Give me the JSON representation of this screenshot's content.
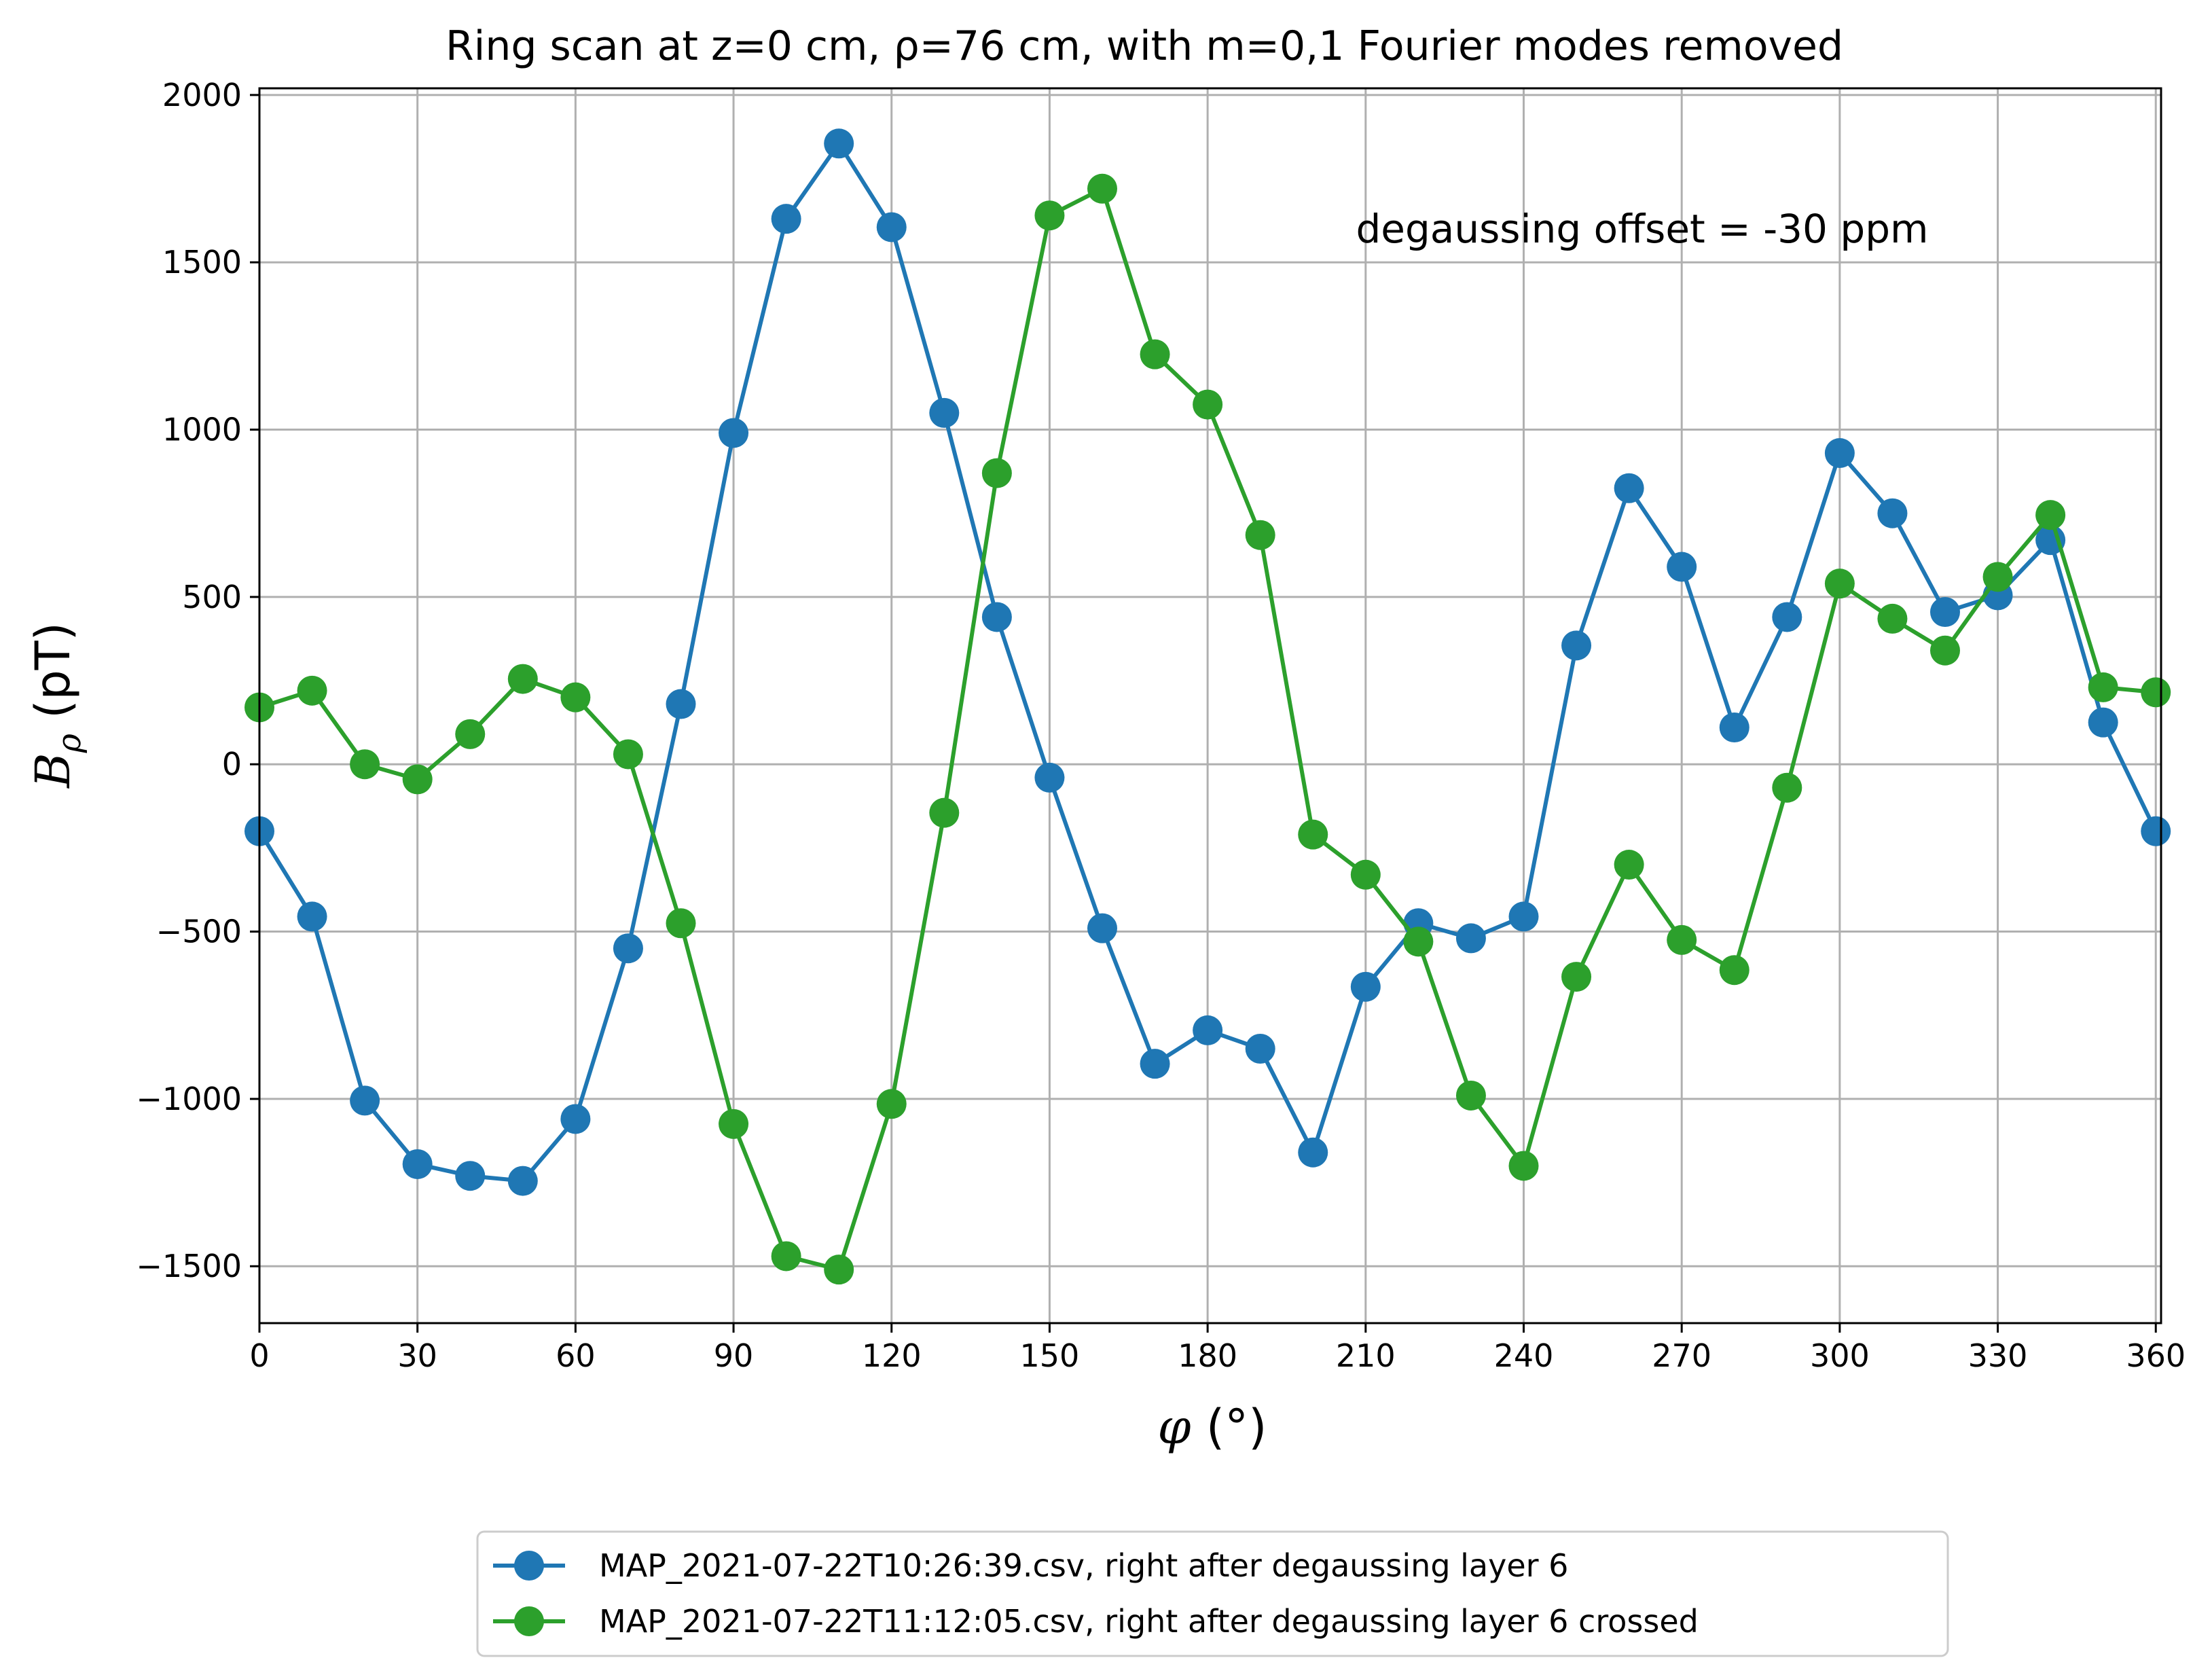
{
  "chart_data": {
    "type": "line",
    "title": "Ring scan at z=0 cm, ρ=76 cm, with m=0,1 Fourier modes removed",
    "xlabel": "φ (°)",
    "ylabel": "Bρ (pT)",
    "xlim": [
      0,
      361
    ],
    "ylim": [
      -1670,
      2020
    ],
    "xticks": [
      0,
      30,
      60,
      90,
      120,
      150,
      180,
      210,
      240,
      270,
      300,
      330,
      360
    ],
    "yticks": [
      -1500,
      -1000,
      -500,
      0,
      500,
      1000,
      1500,
      2000
    ],
    "grid": true,
    "legend_position": "below",
    "annotation": "degaussing offset = -30 ppm",
    "x": [
      0,
      10,
      20,
      30,
      40,
      50,
      60,
      70,
      80,
      90,
      100,
      110,
      120,
      130,
      140,
      150,
      160,
      170,
      180,
      190,
      200,
      210,
      220,
      230,
      240,
      250,
      260,
      270,
      280,
      290,
      300,
      310,
      320,
      330,
      340,
      350,
      360
    ],
    "series": [
      {
        "name": "MAP_2021-07-22T10:26:39.csv, right after degaussing layer 6",
        "color": "#1f77b4",
        "values": [
          -200,
          -455,
          -1005,
          -1195,
          -1230,
          -1245,
          -1060,
          -550,
          180,
          990,
          1630,
          1855,
          1605,
          1050,
          440,
          -40,
          -490,
          -895,
          -795,
          -850,
          -1160,
          -665,
          -475,
          -520,
          -455,
          355,
          825,
          590,
          110,
          440,
          930,
          750,
          455,
          505,
          670,
          125,
          -200
        ]
      },
      {
        "name": "MAP_2021-07-22T11:12:05.csv, right after degaussing layer 6 crossed",
        "color": "#2ca02c",
        "values": [
          170,
          220,
          0,
          -45,
          90,
          255,
          200,
          30,
          -475,
          -1075,
          -1470,
          -1510,
          -1015,
          -145,
          870,
          1640,
          1720,
          1225,
          1075,
          685,
          -210,
          -330,
          -530,
          -990,
          -1200,
          -635,
          -300,
          -525,
          -615,
          -70,
          540,
          435,
          340,
          560,
          745,
          230,
          215
        ]
      }
    ]
  }
}
